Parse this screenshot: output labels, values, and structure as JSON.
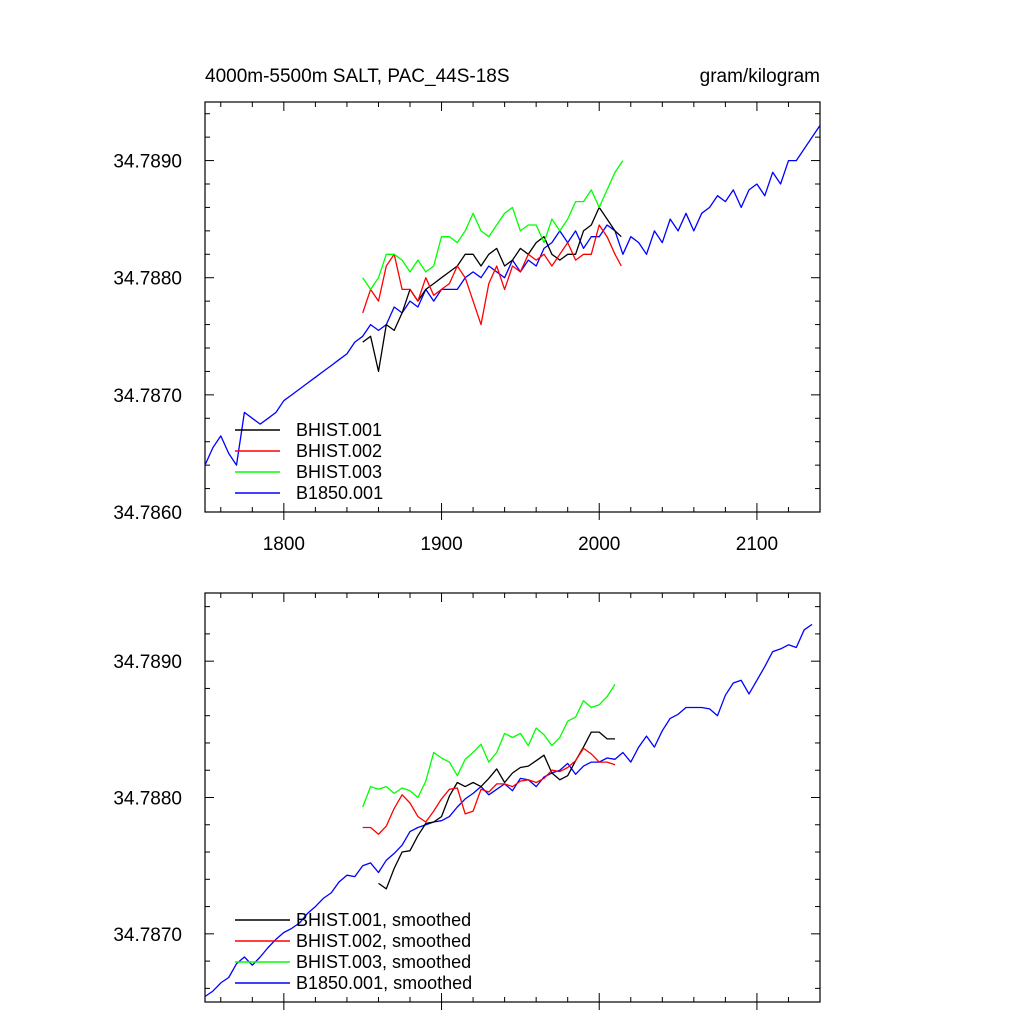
{
  "chart_data": [
    {
      "type": "line",
      "title_left": "4000m-5500m SALT, PAC_44S-18S",
      "title_right": "gram/kilogram",
      "xlabel": "",
      "ylabel": "",
      "xlim": [
        1750,
        2140
      ],
      "ylim": [
        34.786,
        34.7895
      ],
      "x_ticks": [
        1800,
        1900,
        2000,
        2100
      ],
      "x_tick_labels": [
        "1800",
        "1900",
        "2000",
        "2100"
      ],
      "y_ticks": [
        34.786,
        34.787,
        34.788,
        34.789
      ],
      "y_tick_labels": [
        "34.7860",
        "34.7870",
        "34.7880",
        "34.7890"
      ],
      "legend_position": "bottom-left",
      "series": [
        {
          "name": "BHIST.001",
          "color": "#000000",
          "x": [
            1850,
            1855,
            1860,
            1865,
            1870,
            1875,
            1880,
            1885,
            1890,
            1895,
            1900,
            1905,
            1910,
            1915,
            1920,
            1925,
            1930,
            1935,
            1940,
            1945,
            1950,
            1955,
            1960,
            1965,
            1970,
            1975,
            1980,
            1985,
            1990,
            1995,
            2000,
            2005,
            2010,
            2014
          ],
          "y": [
            34.78745,
            34.7875,
            34.7872,
            34.7876,
            34.78755,
            34.7877,
            34.7879,
            34.7878,
            34.7879,
            34.78795,
            34.788,
            34.78805,
            34.7881,
            34.7882,
            34.7882,
            34.7881,
            34.7882,
            34.78825,
            34.7881,
            34.78815,
            34.78825,
            34.7882,
            34.7883,
            34.78835,
            34.7882,
            34.78815,
            34.7882,
            34.7882,
            34.7884,
            34.78845,
            34.7886,
            34.7885,
            34.7884,
            34.78835
          ]
        },
        {
          "name": "BHIST.002",
          "color": "#ff0000",
          "x": [
            1850,
            1855,
            1860,
            1865,
            1870,
            1875,
            1880,
            1885,
            1890,
            1895,
            1900,
            1905,
            1910,
            1915,
            1920,
            1925,
            1930,
            1935,
            1940,
            1945,
            1950,
            1955,
            1960,
            1965,
            1970,
            1975,
            1980,
            1985,
            1990,
            1995,
            2000,
            2005,
            2010,
            2014
          ],
          "y": [
            34.7877,
            34.7879,
            34.7878,
            34.7881,
            34.7882,
            34.7879,
            34.7879,
            34.7878,
            34.788,
            34.78785,
            34.7879,
            34.78795,
            34.7881,
            34.788,
            34.7878,
            34.7876,
            34.78795,
            34.7881,
            34.7879,
            34.7881,
            34.78805,
            34.7882,
            34.78815,
            34.7882,
            34.7881,
            34.7882,
            34.7883,
            34.78815,
            34.7882,
            34.7882,
            34.78845,
            34.78835,
            34.7882,
            34.7881
          ]
        },
        {
          "name": "BHIST.003",
          "color": "#00ff00",
          "x": [
            1850,
            1855,
            1860,
            1865,
            1870,
            1875,
            1880,
            1885,
            1890,
            1895,
            1900,
            1905,
            1910,
            1915,
            1920,
            1925,
            1930,
            1935,
            1940,
            1945,
            1950,
            1955,
            1960,
            1965,
            1970,
            1975,
            1980,
            1985,
            1990,
            1995,
            2000,
            2005,
            2010,
            2015
          ],
          "y": [
            34.788,
            34.7879,
            34.788,
            34.7882,
            34.7882,
            34.78815,
            34.78805,
            34.78815,
            34.78805,
            34.7881,
            34.78835,
            34.78835,
            34.7883,
            34.7884,
            34.78855,
            34.7884,
            34.78835,
            34.78845,
            34.78855,
            34.7886,
            34.7884,
            34.78845,
            34.78845,
            34.7883,
            34.7885,
            34.7884,
            34.7885,
            34.78865,
            34.78865,
            34.78875,
            34.7886,
            34.78875,
            34.7889,
            34.789
          ]
        },
        {
          "name": "B1850.001",
          "color": "#0000ff",
          "x": [
            1750,
            1755,
            1760,
            1765,
            1770,
            1775,
            1780,
            1785,
            1790,
            1795,
            1800,
            1805,
            1810,
            1815,
            1820,
            1825,
            1830,
            1835,
            1840,
            1845,
            1850,
            1855,
            1860,
            1865,
            1870,
            1875,
            1880,
            1885,
            1890,
            1895,
            1900,
            1905,
            1910,
            1915,
            1920,
            1925,
            1930,
            1935,
            1940,
            1945,
            1950,
            1955,
            1960,
            1965,
            1970,
            1975,
            1980,
            1985,
            1990,
            1995,
            2000,
            2005,
            2010,
            2015,
            2020,
            2025,
            2030,
            2035,
            2040,
            2045,
            2050,
            2055,
            2060,
            2065,
            2070,
            2075,
            2080,
            2085,
            2090,
            2095,
            2100,
            2105,
            2110,
            2115,
            2120,
            2125,
            2130,
            2135,
            2140
          ],
          "y": [
            34.7864,
            34.78655,
            34.78665,
            34.7865,
            34.7864,
            34.78685,
            34.7868,
            34.78675,
            34.7868,
            34.78685,
            34.78695,
            34.787,
            34.78705,
            34.7871,
            34.78715,
            34.7872,
            34.78725,
            34.7873,
            34.78735,
            34.78745,
            34.7875,
            34.7876,
            34.78755,
            34.7876,
            34.78775,
            34.7877,
            34.7878,
            34.78775,
            34.7879,
            34.7878,
            34.7879,
            34.7879,
            34.7879,
            34.788,
            34.78805,
            34.788,
            34.7881,
            34.78805,
            34.788,
            34.78815,
            34.78805,
            34.78815,
            34.7881,
            34.78825,
            34.7883,
            34.7884,
            34.7883,
            34.7884,
            34.78825,
            34.78835,
            34.78835,
            34.78845,
            34.7884,
            34.7882,
            34.78835,
            34.7883,
            34.7882,
            34.7884,
            34.7883,
            34.7885,
            34.7884,
            34.78855,
            34.7884,
            34.78855,
            34.7886,
            34.7887,
            34.78865,
            34.78875,
            34.7886,
            34.78875,
            34.7888,
            34.7887,
            34.7889,
            34.7888,
            34.789,
            34.789,
            34.7891,
            34.7892,
            34.7893
          ]
        }
      ]
    },
    {
      "type": "line",
      "xlim": [
        1750,
        2140
      ],
      "ylim": [
        34.7865,
        34.7895
      ],
      "x_ticks": [
        1800,
        1900,
        2000,
        2100
      ],
      "y_ticks": [
        34.787,
        34.788,
        34.789
      ],
      "y_tick_labels": [
        "34.7870",
        "34.7880",
        "34.7890"
      ],
      "legend_position": "bottom-left",
      "series": [
        {
          "name": "BHIST.001, smoothed",
          "color": "#000000",
          "x": [
            1860,
            1865,
            1870,
            1875,
            1880,
            1885,
            1890,
            1895,
            1900,
            1905,
            1910,
            1915,
            1920,
            1925,
            1930,
            1935,
            1940,
            1945,
            1950,
            1955,
            1960,
            1965,
            1970,
            1975,
            1980,
            1985,
            1990,
            1995,
            2000,
            2005,
            2010
          ],
          "y": [
            34.78737,
            34.78733,
            34.78748,
            34.7876,
            34.78761,
            34.78772,
            34.78781,
            34.78782,
            34.78786,
            34.78801,
            34.78811,
            34.78808,
            34.78811,
            34.78808,
            34.78814,
            34.78821,
            34.78811,
            34.78818,
            34.78822,
            34.78823,
            34.78827,
            34.78831,
            34.78818,
            34.78813,
            34.78816,
            34.78827,
            34.78837,
            34.78848,
            34.78848,
            34.78843,
            34.78843
          ]
        },
        {
          "name": "BHIST.002, smoothed",
          "color": "#ff0000",
          "x": [
            1850,
            1855,
            1860,
            1865,
            1870,
            1875,
            1880,
            1885,
            1890,
            1895,
            1900,
            1905,
            1910,
            1915,
            1920,
            1925,
            1930,
            1935,
            1940,
            1945,
            1950,
            1955,
            1960,
            1965,
            1970,
            1975,
            1980,
            1985,
            1990,
            1995,
            2000,
            2005,
            2010
          ],
          "y": [
            34.78778,
            34.78778,
            34.78773,
            34.78779,
            34.78792,
            34.78802,
            34.78796,
            34.78786,
            34.78782,
            34.7879,
            34.78799,
            34.78806,
            34.78807,
            34.78788,
            34.7879,
            34.78806,
            34.78804,
            34.7881,
            34.7881,
            34.78808,
            34.78812,
            34.78813,
            34.78811,
            34.78814,
            34.7882,
            34.78819,
            34.78822,
            34.78827,
            34.78836,
            34.78832,
            34.78826,
            34.78826,
            34.78824
          ]
        },
        {
          "name": "BHIST.003, smoothed",
          "color": "#00ff00",
          "x": [
            1850,
            1855,
            1860,
            1865,
            1870,
            1875,
            1880,
            1885,
            1890,
            1895,
            1900,
            1905,
            1910,
            1915,
            1920,
            1925,
            1930,
            1935,
            1940,
            1945,
            1950,
            1955,
            1960,
            1965,
            1970,
            1975,
            1980,
            1985,
            1990,
            1995,
            2000,
            2005,
            2010
          ],
          "y": [
            34.78793,
            34.78808,
            34.78806,
            34.78808,
            34.78803,
            34.78807,
            34.78805,
            34.788,
            34.78812,
            34.78833,
            34.78829,
            34.78826,
            34.78816,
            34.78828,
            34.78833,
            34.78839,
            34.78826,
            34.78833,
            34.78847,
            34.78844,
            34.78847,
            34.78838,
            34.78851,
            34.78846,
            34.78838,
            34.78844,
            34.78856,
            34.78859,
            34.78871,
            34.78866,
            34.78868,
            34.78874,
            34.78883
          ]
        },
        {
          "name": "B1850.001, smoothed",
          "color": "#0000ff",
          "x": [
            1750,
            1755,
            1760,
            1765,
            1770,
            1775,
            1780,
            1785,
            1790,
            1795,
            1800,
            1805,
            1810,
            1815,
            1820,
            1825,
            1830,
            1835,
            1840,
            1845,
            1850,
            1855,
            1860,
            1865,
            1870,
            1875,
            1880,
            1885,
            1890,
            1895,
            1900,
            1905,
            1910,
            1915,
            1920,
            1925,
            1930,
            1935,
            1940,
            1945,
            1950,
            1955,
            1960,
            1965,
            1970,
            1975,
            1980,
            1985,
            1990,
            1995,
            2000,
            2005,
            2010,
            2015,
            2020,
            2025,
            2030,
            2035,
            2040,
            2045,
            2050,
            2055,
            2060,
            2065,
            2070,
            2075,
            2080,
            2085,
            2090,
            2095,
            2100,
            2105,
            2110,
            2115,
            2120,
            2125,
            2130,
            2135
          ],
          "y": [
            34.78654,
            34.78658,
            34.78664,
            34.78668,
            34.78678,
            34.78683,
            34.78677,
            34.78683,
            34.7869,
            34.78696,
            34.78701,
            34.78704,
            34.78708,
            34.78715,
            34.7872,
            34.78726,
            34.7873,
            34.78738,
            34.78743,
            34.78742,
            34.7875,
            34.78752,
            34.78745,
            34.78754,
            34.78759,
            34.78765,
            34.78775,
            34.78778,
            34.7878,
            34.78782,
            34.78783,
            34.78786,
            34.78793,
            34.78799,
            34.78803,
            34.78808,
            34.78802,
            34.78806,
            34.7881,
            34.78805,
            34.78814,
            34.78813,
            34.78808,
            34.78815,
            34.78818,
            34.7882,
            34.78825,
            34.78817,
            34.78823,
            34.78826,
            34.78826,
            34.78829,
            34.78828,
            34.78833,
            34.78826,
            34.78837,
            34.78845,
            34.78837,
            34.78849,
            34.78858,
            34.78861,
            34.78866,
            34.78866,
            34.78866,
            34.78865,
            34.7886,
            34.78875,
            34.78884,
            34.78886,
            34.78876,
            34.78886,
            34.78896,
            34.78907,
            34.78909,
            34.78912,
            34.7891,
            34.78923,
            34.78927
          ]
        }
      ]
    }
  ]
}
